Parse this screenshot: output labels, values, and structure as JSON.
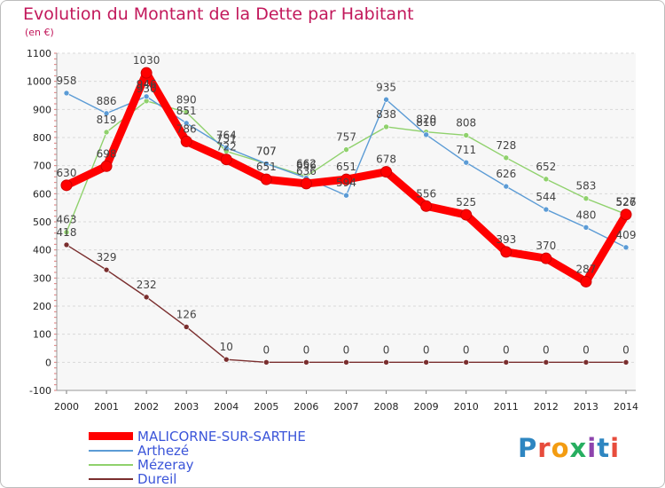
{
  "title": "Evolution du Montant de la Dette par Habitant",
  "unit": "(en €)",
  "logo": "Proxiti",
  "chart_data": {
    "type": "line",
    "x": [
      "2000",
      "2001",
      "2002",
      "2003",
      "2004",
      "2005",
      "2006",
      "2007",
      "2008",
      "2009",
      "2010",
      "2011",
      "2012",
      "2013",
      "2014"
    ],
    "ylim": [
      -100,
      1100
    ],
    "yticks": [
      "-100",
      "0",
      "100",
      "200",
      "300",
      "400",
      "500",
      "600",
      "700",
      "800",
      "900",
      "1000",
      "1100"
    ],
    "grid": true,
    "legend_position": "bottom-left",
    "series": [
      {
        "name": "MALICORNE-SUR-SARTHE",
        "color": "#ff0000",
        "values": [
          630,
          698,
          1030,
          786,
          722,
          651,
          636,
          651,
          678,
          556,
          525,
          393,
          370,
          287,
          526
        ]
      },
      {
        "name": "Arthezé",
        "color": "#5b9bd5",
        "values": [
          958,
          886,
          946,
          851,
          764,
          707,
          656,
          594,
          935,
          810,
          711,
          626,
          544,
          480,
          409
        ]
      },
      {
        "name": "Mézeray",
        "color": "#8fd16c",
        "values": [
          463,
          819,
          930,
          890,
          751,
          707,
          662,
          757,
          838,
          820,
          808,
          728,
          652,
          583,
          527
        ]
      },
      {
        "name": "Dureil",
        "color": "#7a2e2e",
        "values": [
          418,
          329,
          232,
          126,
          10,
          0,
          0,
          0,
          0,
          0,
          0,
          0,
          0,
          0,
          0
        ]
      }
    ]
  }
}
